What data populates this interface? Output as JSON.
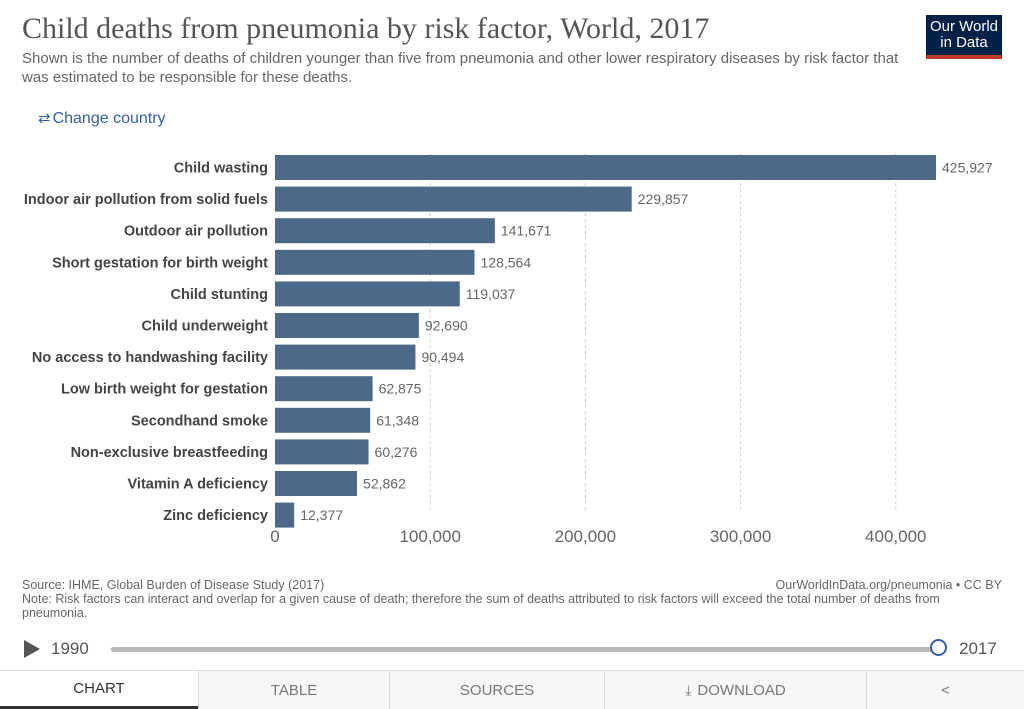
{
  "header": {
    "title": "Child deaths from pneumonia by risk factor, World, 2017",
    "subtitle": "Shown is the number of deaths of children younger than five from pneumonia and other lower respiratory diseases by risk factor that was estimated to be responsible for these deaths.",
    "logo_line1": "Our World",
    "logo_line2": "in Data",
    "change_country": "Change country",
    "change_country_icon": "swap-arrows-icon"
  },
  "chart_data": {
    "type": "bar",
    "orientation": "horizontal",
    "categories": [
      "Child wasting",
      "Indoor air pollution from solid fuels",
      "Outdoor air pollution",
      "Short gestation for birth weight",
      "Child stunting",
      "Child underweight",
      "No access to handwashing facility",
      "Low birth weight for gestation",
      "Secondhand smoke",
      "Non-exclusive breastfeeding",
      "Vitamin A deficiency",
      "Zinc deficiency"
    ],
    "values": [
      425927,
      229857,
      141671,
      128564,
      119037,
      92690,
      90494,
      62875,
      61348,
      60276,
      52862,
      12377
    ],
    "value_labels": [
      "425,927",
      "229,857",
      "141,671",
      "128,564",
      "119,037",
      "92,690",
      "90,494",
      "62,875",
      "61,348",
      "60,276",
      "52,862",
      "12,377"
    ],
    "x_ticks": [
      0,
      100000,
      200000,
      300000,
      400000
    ],
    "x_tick_labels": [
      "0",
      "100,000",
      "200,000",
      "300,000",
      "400,000"
    ],
    "xlim": [
      0,
      425927
    ],
    "grid": "vertical dashed",
    "bar_color": "#4c6a87"
  },
  "footer": {
    "source": "Source: IHME, Global Burden of Disease Study (2017)",
    "note": "Note: Risk factors can interact and overlap for a given cause of death; therefore the sum of deaths attributed to risk factors will exceed the total number of deaths from pneumonia.",
    "attribution": "OurWorldInData.org/pneumonia • CC BY"
  },
  "timeline": {
    "start_year": "1990",
    "end_year": "2017",
    "selected_year": "2017",
    "selected_fraction": 1.0
  },
  "tabs": [
    {
      "label": "Chart",
      "active": true
    },
    {
      "label": "Table",
      "active": false
    },
    {
      "label": "Sources",
      "active": false
    },
    {
      "label": "Download",
      "active": false,
      "icon": "download-icon"
    },
    {
      "label": "",
      "active": false,
      "icon": "share-icon"
    }
  ]
}
